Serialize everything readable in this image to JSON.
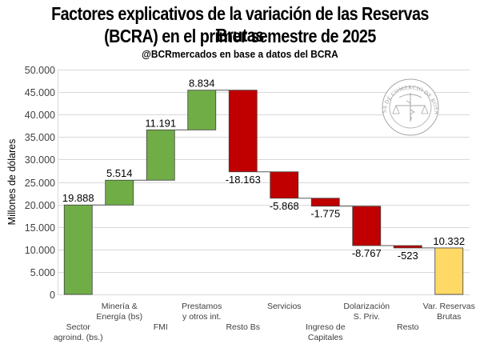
{
  "chart_data": {
    "type": "bar",
    "subtype": "waterfall",
    "title": "Factores explicativos de la variación de las Reservas Brutas (BCRA) en el primer semestre de 2025",
    "title_line1": "Factores explicativos de la variación de las Reservas Brutas",
    "title_line2": "(BCRA) en el primer semestre de 2025",
    "subtitle": "@BCRmercados en base a datos del BCRA",
    "xlabel": "",
    "ylabel": "Millones de dólares",
    "ylim": [
      0,
      50000
    ],
    "yticks": [
      0,
      5000,
      10000,
      15000,
      20000,
      25000,
      30000,
      35000,
      40000,
      45000,
      50000
    ],
    "ytick_labels": [
      "0",
      "5.000",
      "10.000",
      "15.000",
      "20.000",
      "25.000",
      "30.000",
      "35.000",
      "40.000",
      "45.000",
      "50.000"
    ],
    "grid": true,
    "legend": "none",
    "categories": [
      [
        "Sector",
        "agroind. (bs.)"
      ],
      [
        "Minería &",
        "Energía (bs)"
      ],
      [
        "FMI"
      ],
      [
        "Prestamos",
        "y otros int."
      ],
      [
        "Resto Bs"
      ],
      [
        "Servicios"
      ],
      [
        "Ingreso de",
        "Capitales"
      ],
      [
        "Dolarización",
        "S. Priv."
      ],
      [
        "Resto"
      ],
      [
        "Var. Reservas",
        "Brutas"
      ]
    ],
    "values": [
      19888,
      5514,
      11191,
      8834,
      -18163,
      -5868,
      -1775,
      -8767,
      -523,
      10332
    ],
    "data_labels": [
      "19.888",
      "5.514",
      "11.191",
      "8.834",
      "-18.163",
      "-5.868",
      "-1.775",
      "-8.767",
      "-523",
      "10.332"
    ],
    "is_total": [
      false,
      false,
      false,
      false,
      false,
      false,
      false,
      false,
      false,
      true
    ],
    "colors": {
      "increase": "#70ad47",
      "decrease": "#c00000",
      "total": "#ffd966",
      "bar_border": "#404040",
      "grid": "#d9d9d9",
      "connector": "#595959"
    }
  },
  "watermark": {
    "text": "BOLSA DE COMERCIO DE ROSARIO"
  }
}
